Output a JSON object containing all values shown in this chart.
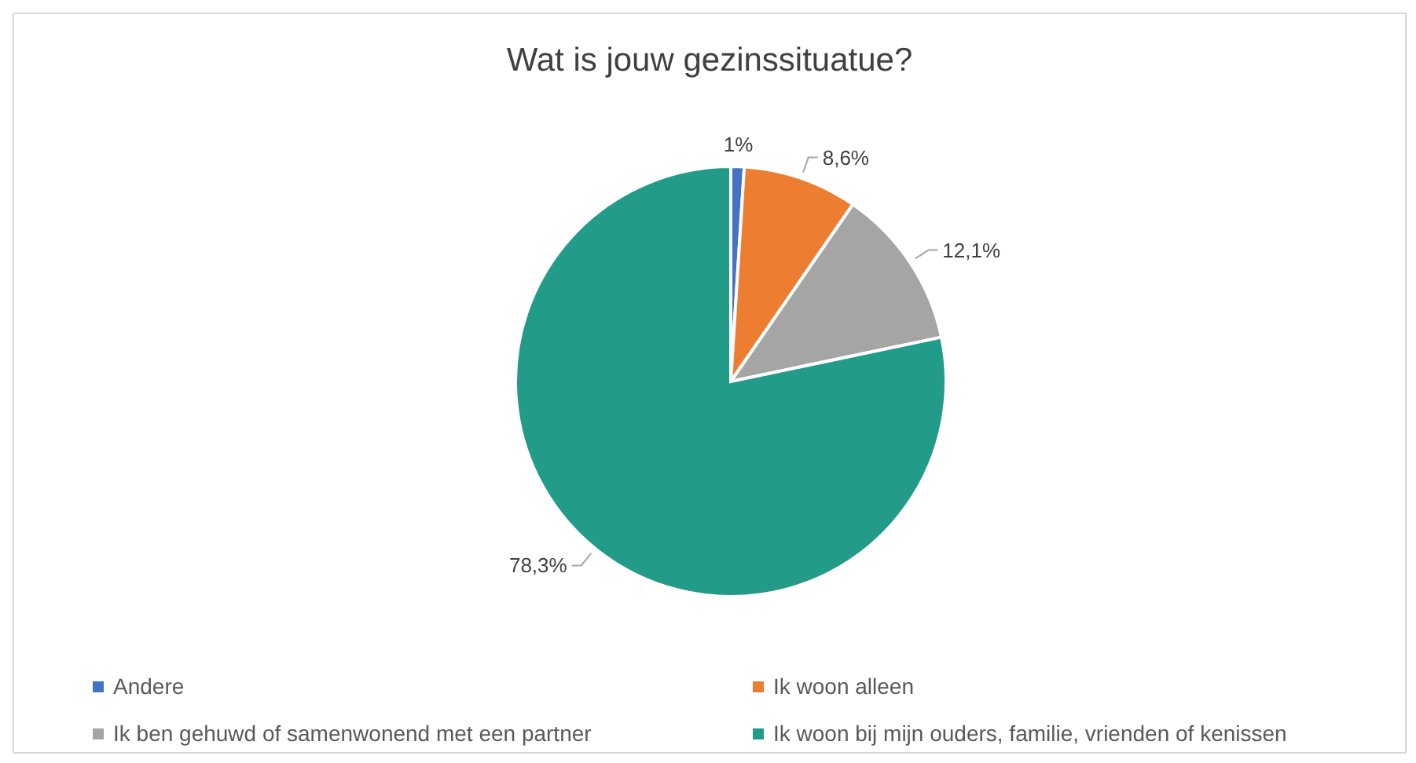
{
  "chart_data": {
    "type": "pie",
    "title": "Wat is jouw gezinssituatue?",
    "categories": [
      "Andere",
      "Ik woon alleen",
      "Ik ben gehuwd of samenwonend met een partner",
      "Ik woon bij mijn ouders, familie, vrienden of kenissen"
    ],
    "values": [
      1,
      8.6,
      12.1,
      78.3
    ],
    "colors": [
      "#4472c4",
      "#ed7d31",
      "#a5a5a5",
      "#239b89"
    ],
    "value_labels": [
      "1%",
      "8,6%",
      "12,1%",
      "78,3%"
    ],
    "legend": "bottom"
  }
}
